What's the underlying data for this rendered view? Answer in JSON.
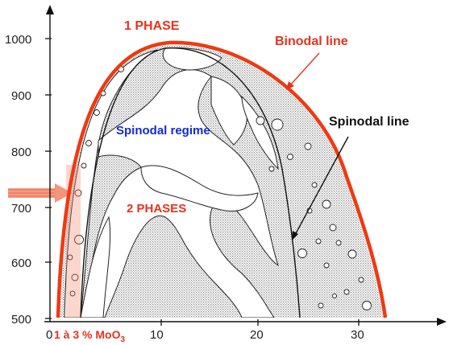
{
  "diagram": {
    "y_ticks": [
      "1000",
      "900",
      "800",
      "700",
      "600",
      "500"
    ],
    "x_ticks": [
      "0",
      "10",
      "20",
      "30"
    ],
    "labels": {
      "one_phase": "1 PHASE",
      "two_phases": "2 PHASES",
      "binodal": "Binodal line",
      "spinodal_line": "Spinodal line",
      "spinodal_regime": "Spinodal regime",
      "composition_prefix": "1 à 3 %  MoO",
      "composition_sub": "3"
    },
    "colors": {
      "binodal": "#ee3a12",
      "text_red": "#e8321e",
      "spinodal_regime": "#1428d8",
      "highlight_band": "#f08a70",
      "stipple": "#9a9a9a"
    }
  }
}
